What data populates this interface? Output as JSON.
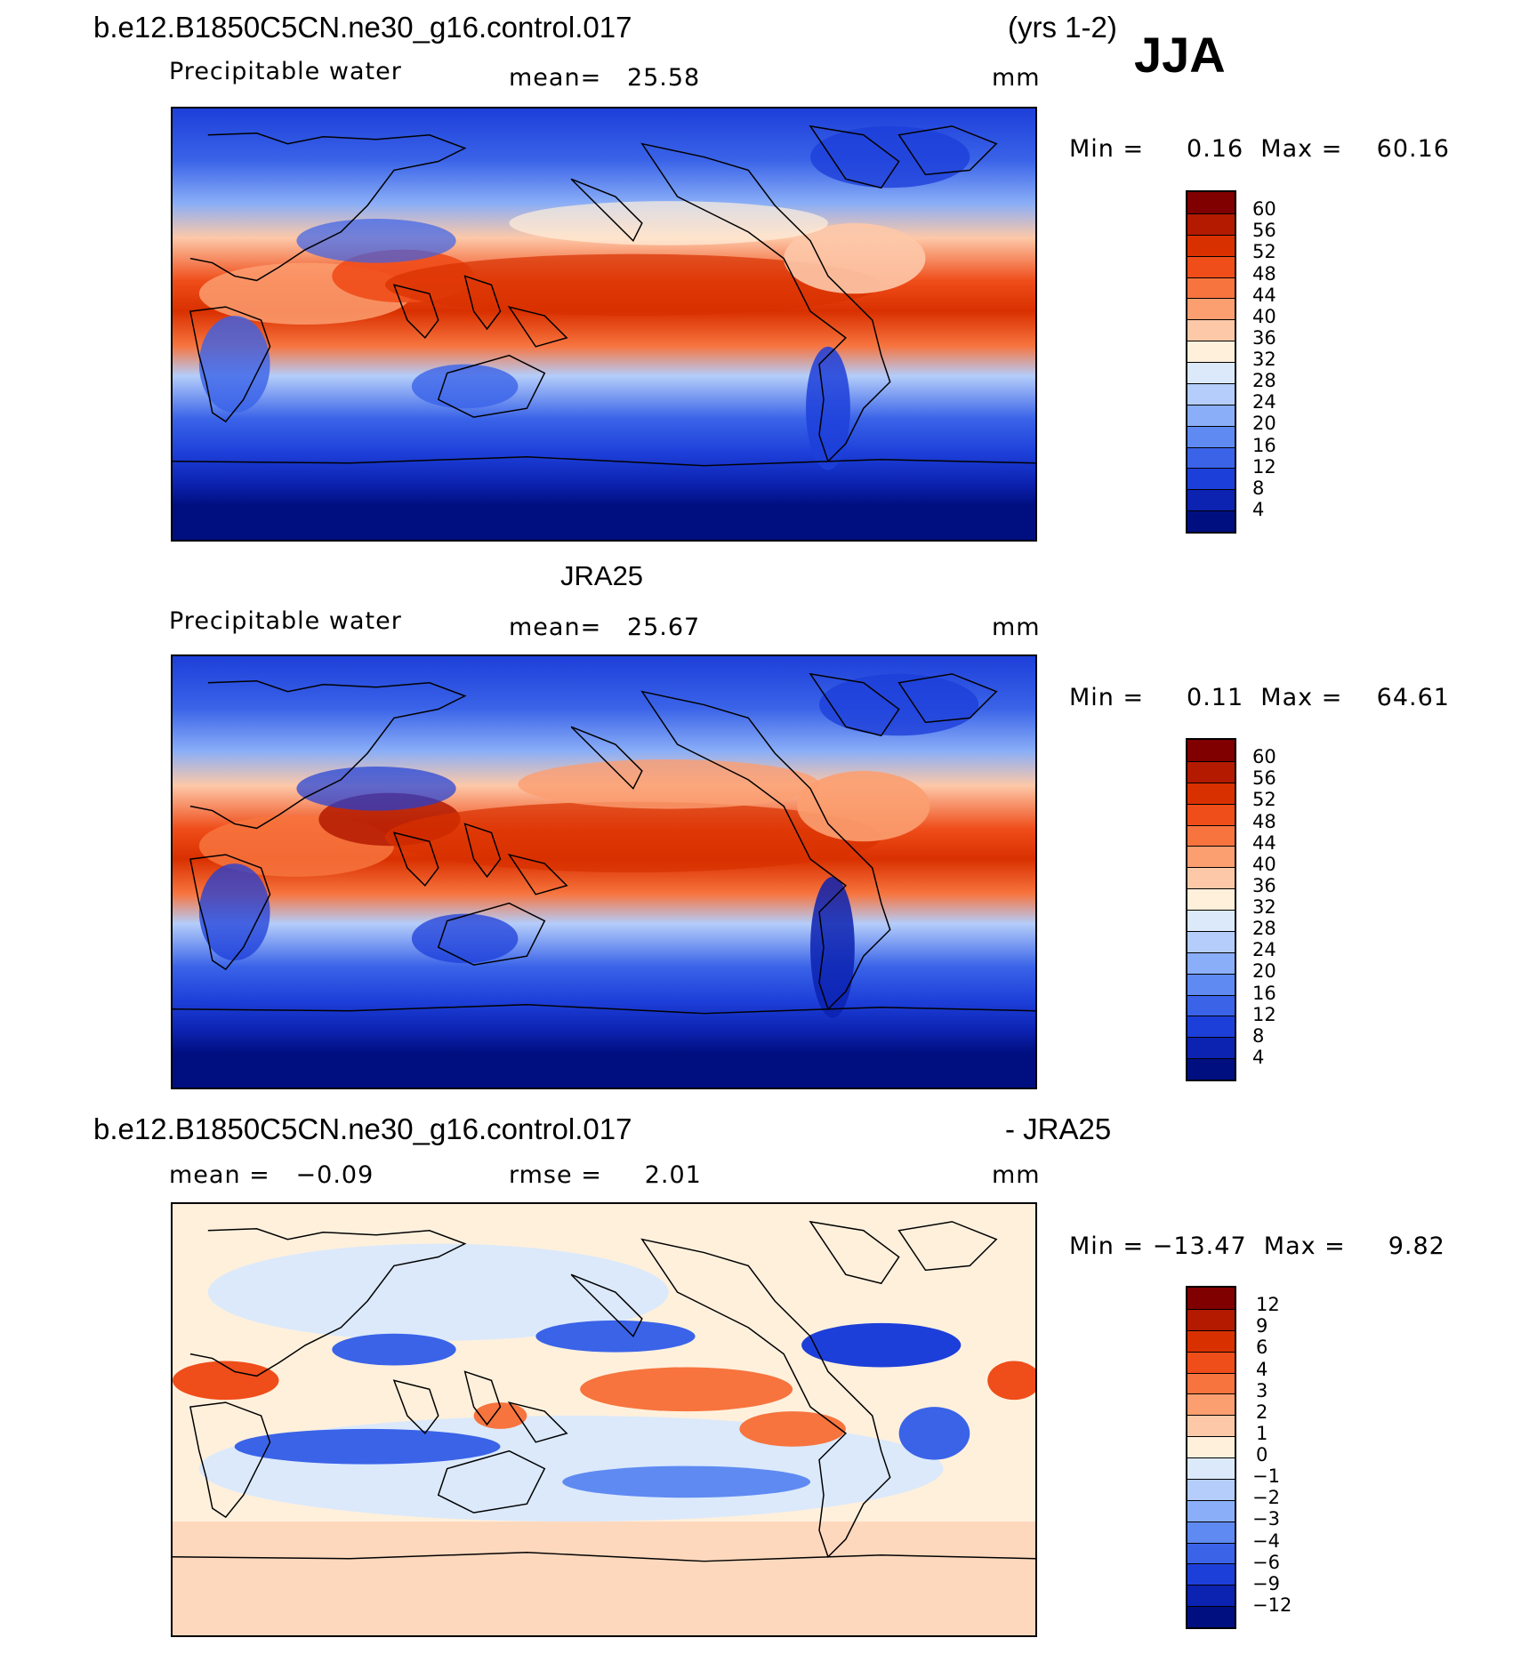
{
  "header": {
    "case_title": "b.e12.B1850C5CN.ne30_g16.control.017",
    "years": "(yrs 1-2)",
    "season": "JJA"
  },
  "panels": [
    {
      "id": "model",
      "title": "",
      "subtitle_left": "Precipitable water",
      "mean_text": "mean=   25.58",
      "units": "mm",
      "minmax": "Min =     0.16  Max =    60.16",
      "colorbar": {
        "labels": [
          "60",
          "56",
          "52",
          "48",
          "44",
          "40",
          "36",
          "32",
          "28",
          "24",
          "20",
          "16",
          "12",
          "8",
          "4"
        ],
        "colors": [
          "#800000",
          "#b31a00",
          "#d93000",
          "#ef4d1a",
          "#f7743e",
          "#fb9e70",
          "#fdc8a8",
          "#fff0dc",
          "#dbe9fb",
          "#b4cdfa",
          "#8aaef7",
          "#5f8af2",
          "#3a63e8",
          "#1d3fd9",
          "#0c22b0",
          "#000f80"
        ]
      }
    },
    {
      "id": "obs",
      "title": "JRA25",
      "subtitle_left": "Precipitable water",
      "mean_text": "mean=   25.67",
      "units": "mm",
      "minmax": "Min =     0.11  Max =    64.61",
      "colorbar": {
        "labels": [
          "60",
          "56",
          "52",
          "48",
          "44",
          "40",
          "36",
          "32",
          "28",
          "24",
          "20",
          "16",
          "12",
          "8",
          "4"
        ],
        "colors": [
          "#800000",
          "#b31a00",
          "#d93000",
          "#ef4d1a",
          "#f7743e",
          "#fb9e70",
          "#fdc8a8",
          "#fff0dc",
          "#dbe9fb",
          "#b4cdfa",
          "#8aaef7",
          "#5f8af2",
          "#3a63e8",
          "#1d3fd9",
          "#0c22b0",
          "#000f80"
        ]
      }
    },
    {
      "id": "diff",
      "title_left": "b.e12.B1850C5CN.ne30_g16.control.017",
      "title_right": "- JRA25",
      "mean_text": "mean =   −0.09",
      "rmse_text": "rmse =     2.01",
      "units": "mm",
      "minmax": "Min = −13.47  Max =     9.82",
      "colorbar": {
        "labels": [
          "12",
          "9",
          "6",
          "4",
          "3",
          "2",
          "1",
          "0",
          "−1",
          "−2",
          "−3",
          "−4",
          "−6",
          "−9",
          "−12"
        ],
        "colors": [
          "#800000",
          "#b31a00",
          "#d93000",
          "#ef4d1a",
          "#f7743e",
          "#fb9e70",
          "#fdc8a8",
          "#fff0dc",
          "#dbe9fb",
          "#b4cdfa",
          "#8aaef7",
          "#5f8af2",
          "#3a63e8",
          "#1d3fd9",
          "#0c22b0",
          "#000f80"
        ]
      }
    }
  ]
}
